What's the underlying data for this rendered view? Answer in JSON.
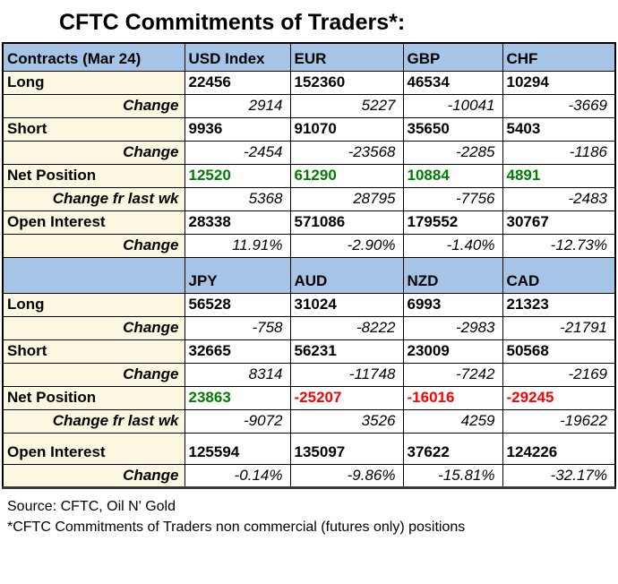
{
  "title": "CFTC Commitments of Traders*:",
  "table": {
    "sections": [
      {
        "header": {
          "label": "Contracts (Mar 24)",
          "columns": [
            "USD Index",
            "EUR",
            "GBP",
            "CHF"
          ]
        },
        "rows": [
          {
            "label": "Long",
            "style": "bold",
            "values": [
              "22456",
              "152360",
              "46534",
              "10294"
            ]
          },
          {
            "label": "Change",
            "style": "change",
            "values": [
              "2914",
              "5227",
              "-10041",
              "-3669"
            ]
          },
          {
            "label": "Short",
            "style": "bold",
            "values": [
              "9936",
              "91070",
              "35650",
              "5403"
            ]
          },
          {
            "label": "Change",
            "style": "change",
            "values": [
              "-2454",
              "-23568",
              "-2285",
              "-1186"
            ]
          },
          {
            "label": "Net Position",
            "style": "net",
            "values": [
              "12520",
              "61290",
              "10884",
              "4891"
            ]
          },
          {
            "label": "Change fr last wk",
            "style": "change",
            "values": [
              "5368",
              "28795",
              "-7756",
              "-2483"
            ]
          },
          {
            "label": "Open Interest",
            "style": "bold",
            "values": [
              "28338",
              "571086",
              "179552",
              "30767"
            ]
          },
          {
            "label": "Change",
            "style": "change",
            "values": [
              "11.91%",
              "-2.90%",
              "-1.40%",
              "-12.73%"
            ]
          }
        ]
      },
      {
        "header": {
          "label": "",
          "columns": [
            "JPY",
            "AUD",
            "NZD",
            "CAD"
          ]
        },
        "rows": [
          {
            "label": "Long",
            "style": "bold",
            "values": [
              "56528",
              "31024",
              "6993",
              "21323"
            ]
          },
          {
            "label": "Change",
            "style": "change",
            "values": [
              "-758",
              "-8222",
              "-2983",
              "-21791"
            ]
          },
          {
            "label": "Short",
            "style": "bold",
            "values": [
              "32665",
              "56231",
              "23009",
              "50568"
            ]
          },
          {
            "label": "Change",
            "style": "change",
            "values": [
              "8314",
              "-11748",
              "-7242",
              "-2169"
            ]
          },
          {
            "label": "Net Position",
            "style": "net",
            "values": [
              "23863",
              "-25207",
              "-16016",
              "-29245"
            ]
          },
          {
            "label": "Change fr last wk",
            "style": "change",
            "values": [
              "-9072",
              "3526",
              "4259",
              "-19622"
            ]
          },
          {
            "label": "Open Interest",
            "style": "bold",
            "values": [
              "125594",
              "135097",
              "37622",
              "124226"
            ]
          },
          {
            "label": "Change",
            "style": "change",
            "values": [
              "-0.14%",
              "-9.86%",
              "-15.81%",
              "-32.17%"
            ]
          }
        ]
      }
    ]
  },
  "footer": {
    "source": "Source: CFTC, Oil N' Gold",
    "note": "*CFTC Commitments of Traders non commercial (futures only) positions"
  },
  "colors": {
    "header_bg": "#a5c4e6",
    "label_bg": "#fcf7e1",
    "positive_value": "#007d00",
    "negative_value": "#fe0000",
    "border": "#000000"
  }
}
